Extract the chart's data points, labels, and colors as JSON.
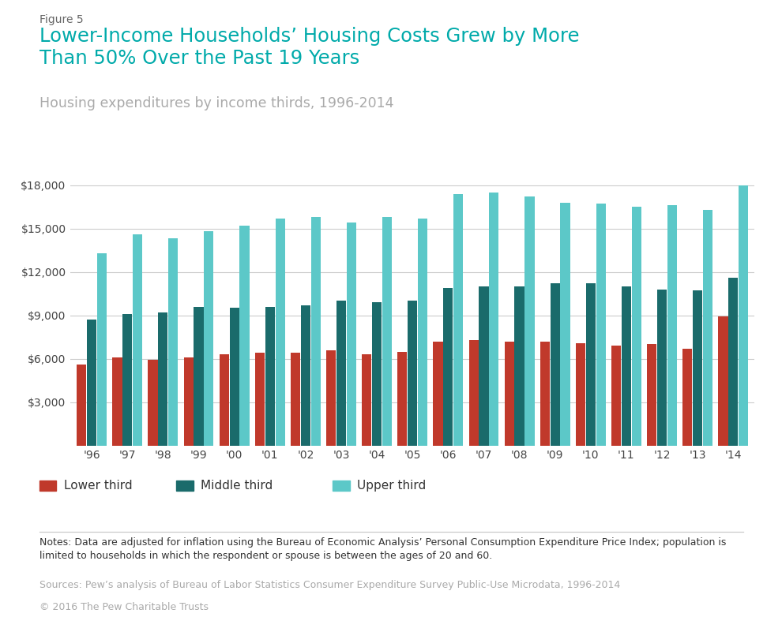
{
  "years": [
    "'96",
    "'97",
    "'98",
    "'99",
    "'00",
    "'01",
    "'02",
    "'03",
    "'04",
    "'05",
    "'06",
    "'07",
    "'08",
    "'09",
    "'10",
    "'11",
    "'12",
    "'13",
    "'14"
  ],
  "lower_third": [
    5600,
    6100,
    5950,
    6100,
    6300,
    6400,
    6400,
    6600,
    6300,
    6450,
    7200,
    7300,
    7200,
    7200,
    7100,
    6900,
    7000,
    6700,
    8900
  ],
  "middle_third": [
    8700,
    9100,
    9200,
    9600,
    9500,
    9600,
    9700,
    10000,
    9900,
    10000,
    10900,
    11000,
    11000,
    11200,
    11200,
    11000,
    10800,
    10700,
    11600
  ],
  "upper_third": [
    13300,
    14600,
    14300,
    14800,
    15200,
    15700,
    15800,
    15400,
    15800,
    15700,
    17400,
    17500,
    17200,
    16800,
    16700,
    16500,
    16600,
    16300,
    18000
  ],
  "lower_color": "#c0392b",
  "middle_color": "#1a6b6b",
  "upper_color": "#5cc8c8",
  "title_fig": "Figure 5",
  "title_main": "Lower-Income Households’ Housing Costs Grew by More\nThan 50% Over the Past 19 Years",
  "subtitle": "Housing expenditures by income thirds, 1996-2014",
  "ylim": [
    0,
    19000
  ],
  "yticks": [
    3000,
    6000,
    9000,
    12000,
    15000,
    18000
  ],
  "legend_labels": [
    "Lower third",
    "Middle third",
    "Upper third"
  ],
  "note_text": "Notes: Data are adjusted for inflation using the Bureau of Economic Analysis’ Personal Consumption Expenditure Price Index; population is\nlimited to households in which the respondent or spouse is between the ages of 20 and 60.",
  "source_text": "Sources: Pew’s analysis of Bureau of Labor Statistics Consumer Expenditure Survey Public-Use Microdata, 1996-2014",
  "copyright_text": "© 2016 The Pew Charitable Trusts",
  "background_color": "#ffffff",
  "title_fig_color": "#666666",
  "title_main_color": "#00aaaa",
  "subtitle_color": "#aaaaaa",
  "grid_color": "#cccccc",
  "note_color": "#333333",
  "source_color": "#aaaaaa"
}
